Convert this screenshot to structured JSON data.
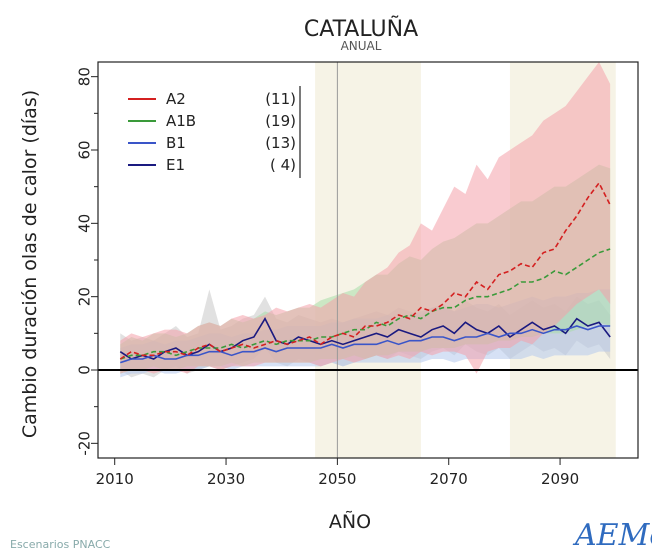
{
  "chart_data": {
    "type": "line",
    "title": "CATALUÑA",
    "subtitle": "ANUAL",
    "xlabel": "AÑO",
    "ylabel": "Cambio duración olas de calor (días)",
    "xlim": [
      2007,
      2104
    ],
    "ylim": [
      -24,
      84
    ],
    "xticks": [
      2010,
      2030,
      2050,
      2070,
      2090
    ],
    "yticks": [
      -20,
      0,
      20,
      40,
      60,
      80
    ],
    "zero_line": 0,
    "vline": 2050,
    "shaded_periods": [
      [
        2046,
        2065
      ],
      [
        2081,
        2100
      ]
    ],
    "legend_placement": "top-left",
    "x": [
      2011,
      2013,
      2015,
      2017,
      2019,
      2021,
      2023,
      2025,
      2027,
      2029,
      2031,
      2033,
      2035,
      2037,
      2039,
      2041,
      2043,
      2045,
      2047,
      2049,
      2051,
      2053,
      2055,
      2057,
      2059,
      2061,
      2063,
      2065,
      2067,
      2069,
      2071,
      2073,
      2075,
      2077,
      2079,
      2081,
      2083,
      2085,
      2087,
      2089,
      2091,
      2093,
      2095,
      2097,
      2099
    ],
    "series": [
      {
        "name": "A2",
        "count": "(11)",
        "color": "#d42020",
        "band_color": "#f4a0aa",
        "values": [
          3,
          5,
          4,
          4,
          5,
          5,
          4,
          6,
          7,
          5,
          6,
          7,
          6,
          7,
          8,
          7,
          8,
          9,
          7,
          9,
          10,
          9,
          12,
          12,
          13,
          15,
          14,
          17,
          16,
          18,
          21,
          20,
          24,
          22,
          26,
          27,
          29,
          28,
          32,
          33,
          38,
          42,
          47,
          51,
          45
        ],
        "upper": [
          8,
          10,
          9,
          10,
          11,
          11,
          10,
          12,
          13,
          12,
          14,
          15,
          14,
          15,
          17,
          16,
          17,
          18,
          17,
          19,
          21,
          20,
          24,
          26,
          28,
          32,
          34,
          40,
          38,
          44,
          50,
          48,
          56,
          52,
          58,
          60,
          62,
          64,
          68,
          70,
          72,
          76,
          80,
          84,
          78
        ],
        "lower": [
          -1,
          0,
          0,
          -1,
          0,
          0,
          -1,
          1,
          1,
          0,
          1,
          1,
          1,
          2,
          2,
          2,
          2,
          2,
          1,
          2,
          3,
          2,
          3,
          4,
          3,
          4,
          3,
          5,
          4,
          5,
          5,
          4,
          -1,
          5,
          6,
          6,
          8,
          7,
          10,
          12,
          15,
          18,
          20,
          22,
          18
        ]
      },
      {
        "name": "A1B",
        "count": "(19)",
        "color": "#3a9a3a",
        "band_color": "#a8dca8",
        "values": [
          3,
          4,
          4,
          5,
          5,
          4,
          5,
          6,
          6,
          6,
          7,
          6,
          7,
          8,
          7,
          8,
          8,
          8,
          9,
          9,
          10,
          11,
          11,
          13,
          12,
          14,
          15,
          14,
          16,
          17,
          17,
          19,
          20,
          20,
          21,
          22,
          24,
          24,
          25,
          27,
          26,
          28,
          30,
          32,
          33
        ],
        "upper": [
          7,
          9,
          8,
          10,
          10,
          9,
          10,
          12,
          13,
          12,
          14,
          13,
          14,
          16,
          15,
          16,
          17,
          17,
          19,
          20,
          21,
          22,
          24,
          26,
          26,
          29,
          31,
          30,
          33,
          35,
          36,
          38,
          40,
          40,
          42,
          44,
          46,
          46,
          48,
          50,
          50,
          52,
          54,
          56,
          55
        ],
        "lower": [
          -1,
          0,
          0,
          1,
          0,
          0,
          1,
          1,
          1,
          1,
          2,
          1,
          2,
          2,
          2,
          2,
          2,
          2,
          3,
          3,
          3,
          4,
          3,
          4,
          4,
          5,
          5,
          5,
          6,
          6,
          6,
          7,
          7,
          7,
          8,
          8,
          9,
          9,
          10,
          10,
          10,
          11,
          12,
          13,
          12
        ]
      },
      {
        "name": "B1",
        "count": "(13)",
        "color": "#3a55c8",
        "band_color": "#b4c8ec",
        "values": [
          2,
          3,
          3,
          4,
          3,
          3,
          4,
          4,
          5,
          5,
          4,
          5,
          5,
          6,
          5,
          6,
          6,
          6,
          6,
          7,
          6,
          7,
          7,
          7,
          8,
          7,
          8,
          8,
          9,
          9,
          8,
          9,
          9,
          10,
          9,
          10,
          10,
          11,
          10,
          11,
          11,
          12,
          11,
          12,
          12
        ],
        "upper": [
          6,
          7,
          7,
          8,
          7,
          8,
          8,
          9,
          10,
          10,
          9,
          10,
          10,
          11,
          11,
          12,
          12,
          12,
          12,
          13,
          13,
          14,
          14,
          14,
          15,
          14,
          15,
          16,
          17,
          17,
          16,
          17,
          18,
          18,
          17,
          18,
          19,
          20,
          19,
          20,
          20,
          21,
          21,
          22,
          22
        ],
        "lower": [
          -2,
          -1,
          -1,
          0,
          -1,
          -1,
          0,
          0,
          1,
          1,
          0,
          1,
          1,
          1,
          1,
          1,
          1,
          1,
          1,
          2,
          1,
          2,
          2,
          2,
          2,
          2,
          2,
          2,
          3,
          3,
          2,
          3,
          3,
          3,
          3,
          3,
          3,
          4,
          3,
          4,
          4,
          4,
          4,
          5,
          5
        ]
      },
      {
        "name": "E1",
        "count": "(  4)",
        "color": "#1a1a80",
        "band_color": "#c8c8c8",
        "values": [
          5,
          3,
          4,
          3,
          5,
          6,
          4,
          5,
          7,
          5,
          6,
          8,
          9,
          14,
          8,
          7,
          9,
          8,
          7,
          8,
          7,
          8,
          9,
          10,
          9,
          11,
          10,
          9,
          11,
          12,
          10,
          13,
          11,
          10,
          12,
          9,
          11,
          13,
          11,
          12,
          10,
          14,
          12,
          13,
          9
        ],
        "upper": [
          10,
          8,
          9,
          8,
          10,
          12,
          9,
          10,
          22,
          11,
          12,
          14,
          15,
          20,
          14,
          13,
          15,
          14,
          13,
          14,
          13,
          14,
          15,
          16,
          15,
          17,
          16,
          15,
          17,
          18,
          16,
          19,
          17,
          16,
          18,
          15,
          17,
          19,
          17,
          18,
          16,
          20,
          18,
          19,
          15
        ],
        "lower": [
          0,
          -2,
          -1,
          -2,
          0,
          1,
          -1,
          0,
          1,
          0,
          1,
          2,
          3,
          6,
          2,
          1,
          3,
          2,
          1,
          2,
          1,
          2,
          3,
          4,
          3,
          5,
          4,
          3,
          5,
          6,
          4,
          7,
          5,
          4,
          6,
          3,
          5,
          7,
          5,
          6,
          4,
          8,
          6,
          7,
          3
        ]
      }
    ]
  },
  "branding": {
    "logo_text": "AEMet",
    "footer_text": "Escenarios PNACC"
  },
  "colors": {
    "zero_line": "#000000",
    "vline": "#999999",
    "shade": "#f6f3e6",
    "logo_blue": "#2f6bbf",
    "logo_green": "#7ab840"
  }
}
